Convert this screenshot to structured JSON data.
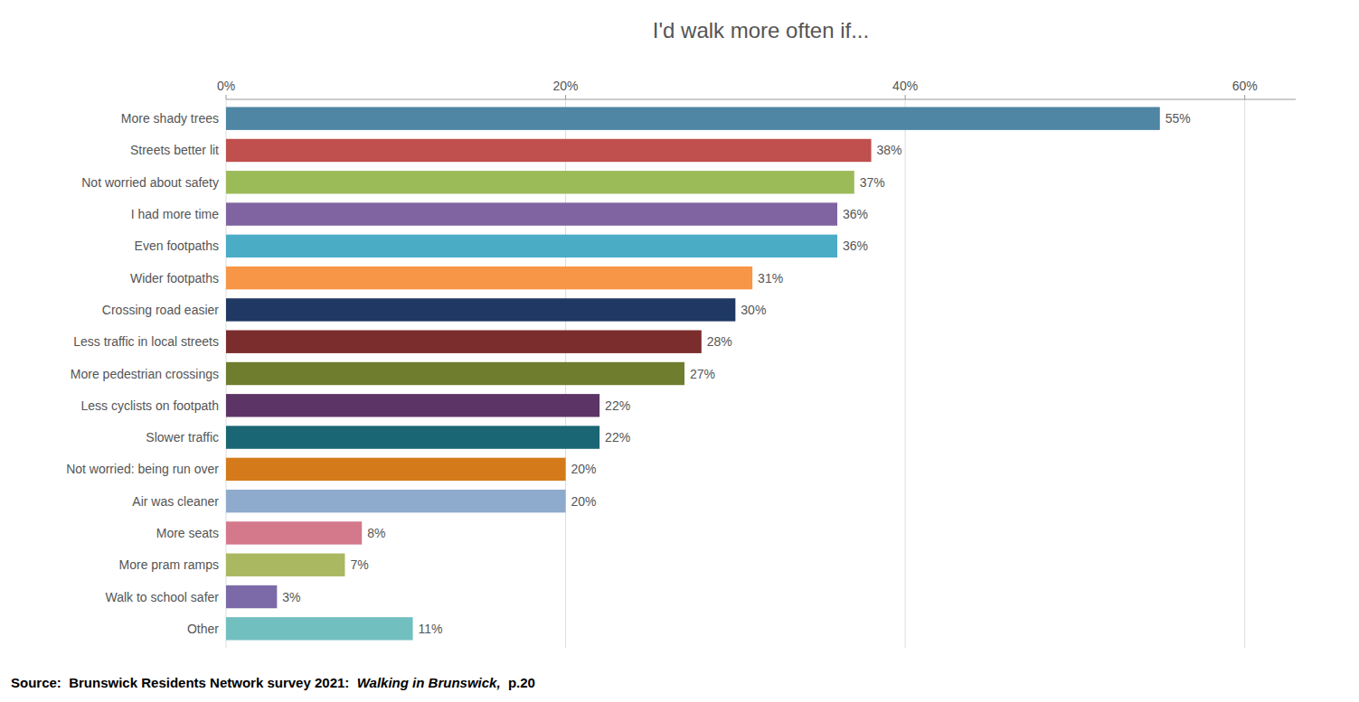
{
  "chart_data": {
    "type": "bar",
    "orientation": "horizontal",
    "title": "I'd walk more often if...",
    "categories": [
      "More shady trees",
      "Streets better lit",
      "Not worried about safety",
      "I had more time",
      "Even footpaths",
      "Wider footpaths",
      "Crossing road easier",
      "Less traffic in local streets",
      "More pedestrian crossings",
      "Less cyclists on footpath",
      "Slower traffic",
      "Not worried: being run over",
      "Air was cleaner",
      "More seats",
      "More pram ramps",
      "Walk to school safer",
      "Other"
    ],
    "values": [
      55,
      38,
      37,
      36,
      36,
      31,
      30,
      28,
      27,
      22,
      22,
      20,
      20,
      8,
      7,
      3,
      11
    ],
    "value_labels": [
      "55%",
      "38%",
      "37%",
      "36%",
      "36%",
      "31%",
      "30%",
      "28%",
      "27%",
      "22%",
      "22%",
      "20%",
      "20%",
      "8%",
      "7%",
      "3%",
      "11%"
    ],
    "colors": [
      "#4e86a4",
      "#c0504d",
      "#9bbb59",
      "#8064a2",
      "#4bacc6",
      "#f79646",
      "#1f3864",
      "#7b2c2c",
      "#6e7d2e",
      "#5c3566",
      "#1a6674",
      "#d47a1a",
      "#8eaacc",
      "#d4788c",
      "#aab862",
      "#7c6aa8",
      "#72bfbf"
    ],
    "xlim": [
      0,
      63
    ],
    "xticks": [
      {
        "value": 0,
        "label": "0%"
      },
      {
        "value": 20,
        "label": "20%"
      },
      {
        "value": 40,
        "label": "40%"
      },
      {
        "value": 60,
        "label": "60%"
      }
    ],
    "grid": true,
    "data_labels": true,
    "annotations": [
      "Source:  Brunswick Residents Network survey 2021:  ",
      "Walking in Brunswick,",
      "  p.20"
    ]
  }
}
